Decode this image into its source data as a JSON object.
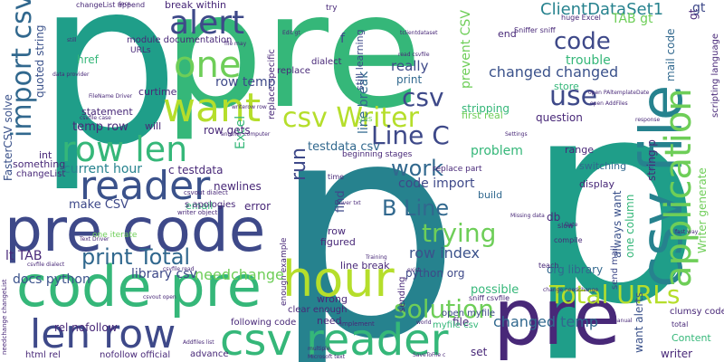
{
  "words": {
    "p_left": "p",
    "pre_top": "pre",
    "p_mid": "p",
    "p_right": "p",
    "pre_code": "pre code",
    "code_pre": "code pre",
    "pre_bottom": "pre",
    "hour": "hour",
    "csv_reader": "csv reader",
    "csv_file": "csv file",
    "application": "application",
    "csv_writer": "csv Writer",
    "row_len": "row len",
    "len_row": "len row",
    "reader": "reader",
    "want": "want",
    "one": "one",
    "alert": "alert",
    "import_csv": "import csv",
    "print_total": "print Total",
    "trying": "trying",
    "solution": "solution",
    "total_urls": "Total URLs",
    "line_c": "Line C",
    "code": "code",
    "work": "work",
    "b_line": "B Line",
    "use": "use",
    "clientdataset1": "ClientDataSet1",
    "csv": "csv",
    "run": "run",
    "changed_changed": "changed changed",
    "changed_temp": "changed temp",
    "needchange": "needchange",
    "library_csv": "library csv",
    "docs_python": "docs python",
    "lt_tab": "lt TAB",
    "make_csv": "make CSV",
    "current_hour": "current hour",
    "c_testdata": "c testdata",
    "row_index": "row index",
    "python_org": "python org",
    "org_library": "org library",
    "code_import": "code import",
    "problem": "problem",
    "testdata_csv": "testdata csv",
    "temp_row": "temp row",
    "row_gets": "row gets",
    "row_temp": "row temp",
    "really": "really",
    "print": "print",
    "question": "question",
    "trouble": "trouble",
    "store": "store",
    "stripping": "stripping",
    "first_real": "first real",
    "end": "end",
    "tab_gt": "TAB gt",
    "gt": "gt",
    "f": "f",
    "href": "href",
    "curtime": "curtime",
    "statement": "statement",
    "will": "will",
    "int": "int",
    "something": "something",
    "email": "email",
    "error": "error",
    "newlines": "newlines",
    "db": "db",
    "range": "range",
    "display": "display",
    "switching": "switching",
    "build": "build",
    "row": "row",
    "find": "find",
    "figured": "figured",
    "line_break": "line break",
    "possible": "possible",
    "wrong": "wrong",
    "need": "need",
    "file": "file",
    "set": "set",
    "writer": "writer",
    "content": "Content",
    "clumsy_code": "clumsy code",
    "open_myfile": "open myfile",
    "send_mail": "send mail",
    "one_column": "one column",
    "always_want": "always want",
    "want_alerts": "want alerts",
    "quoted_string": "quoted string",
    "fastercsv_solve": "FasterCSV solve",
    "excel": "Excel",
    "break_within": "break within",
    "module_documentation": "module documentation",
    "dialect": "dialect",
    "replace": "replace",
    "replace_specific": "replace specific",
    "still_learning": "still learning",
    "prevent_csv": "prevent CSV",
    "mail_code": "mail code",
    "string_p": "string p",
    "scripting_language": "scripting language",
    "writer_generate": "Writer generate",
    "huge_excel": "huge Excel",
    "following_code": "following code",
    "clear_enough": "clear enough",
    "rel_nofollow": "rel nofollow",
    "nofollow_official": "nofollow official",
    "html_rel": "html rel",
    "advance": "advance",
    "changelist": "changeList",
    "beginning_stages": "beginning stages",
    "enough_example": "enough example",
    "sending": "sending",
    "s_apologies": "s apologies",
    "one_iterate": "one iterate",
    "replace_part": "replace part",
    "sniff_csvfile": "sniff csvfile",
    "myfile_csv": "myfile csv",
    "urls": "URLs",
    "try": "try",
    "yes": "yes",
    "time": "time",
    "slow": "slow",
    "compile": "compile",
    "teach": "teach",
    "changelist_append": "changeList append",
    "docs": "docs",
    "still": "still",
    "edit_gt": "Edit gt",
    "file_may": "file may",
    "read_csvfile": "read csvfile",
    "sniffer_sniff": "Sniffer sniff",
    "tclientdataset": "tclientdataset",
    "open_addfiles": "open AddFiles",
    "response": "response",
    "fast_way": "fast way",
    "total": "total",
    "manual": "manual",
    "implement": "implement",
    "world": "world",
    "multiple": "multiple",
    "training": "Training",
    "missing_data": "Missing data",
    "writer_object": "writer object",
    "another_computer": "another computer",
    "csvout_dialect": "csvout dialect",
    "settings": "Settings",
    "driver_txt": "Driver txt",
    "savetofile_c": "SaveToFile c",
    "exist": "exist",
    "date": "Date",
    "writerow_row": "writerow row",
    "csvfile_dialect": "csvfile dialect",
    "csvfile_read": "csvfile read",
    "csvout_open": "csvout open",
    "needchange_changelist": "needchange changeList",
    "open_paltemplatedate": "open PAltemplateDate",
    "change_needchange": "change needchange",
    "data_provider": "data provider",
    "addfiles_list": "Addfiles list",
    "microsoft_text": "Microsoft text",
    "text_driver": "Text Driver",
    "csvfile_case": "csvfile case",
    "filename_driver": "FileName Driver"
  },
  "colors": {
    "dark_teal": "#26828e",
    "teal": "#1f9e89",
    "green": "#35b779",
    "lime": "#6ece58",
    "yellow": "#b5de2b",
    "navy": "#3e4989",
    "indigo": "#31688e",
    "purple": "#482878",
    "deep_purple": "#440154",
    "blue": "#3b528b"
  }
}
